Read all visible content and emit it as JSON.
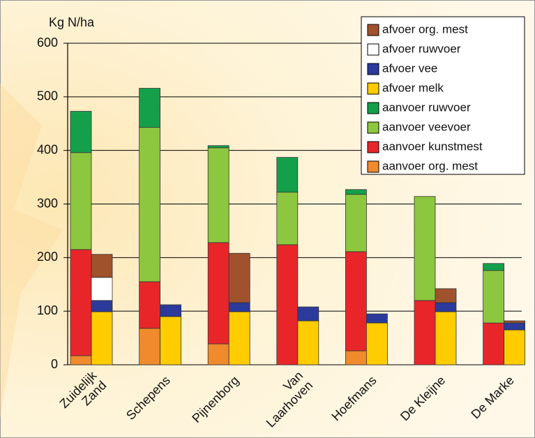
{
  "chart_data": {
    "type": "stacked_bar",
    "y_label": "Kg N/ha",
    "categories": [
      "Zuidelijk\nZand",
      "Schepens",
      "Pijnenborg",
      "Van\nLaarhoven",
      "Hoefmans",
      "De Kleijne",
      "De Marke"
    ],
    "ylim": [
      0,
      600
    ],
    "yticks": [
      0,
      100,
      200,
      300,
      400,
      500,
      600
    ],
    "grid": true,
    "legend": "upper right",
    "series": [
      {
        "name": "afvoer org. mest",
        "color": "#a0522d",
        "stack": 1,
        "values": [
          43,
          0,
          92,
          0,
          0,
          26,
          4
        ]
      },
      {
        "name": "afvoer ruwvoer",
        "color": "#ffffff",
        "stack": 1,
        "values": [
          43,
          0,
          0,
          0,
          0,
          0,
          0
        ]
      },
      {
        "name": "afvoer vee",
        "color": "#2b3a9b",
        "stack": 1,
        "values": [
          21,
          22,
          17,
          26,
          17,
          17,
          13
        ]
      },
      {
        "name": "afvoer melk",
        "color": "#ffcc00",
        "stack": 1,
        "values": [
          99,
          90,
          99,
          82,
          78,
          99,
          65
        ]
      },
      {
        "name": "aanvoer ruwvoer",
        "color": "#14a04b",
        "stack": 0,
        "values": [
          77,
          73,
          4,
          65,
          9,
          0,
          13
        ]
      },
      {
        "name": "aanvoer veevoer",
        "color": "#8dc63f",
        "stack": 0,
        "values": [
          181,
          288,
          177,
          98,
          107,
          194,
          98
        ]
      },
      {
        "name": "aanvoer kunstmest",
        "color": "#e8262a",
        "stack": 0,
        "values": [
          198,
          87,
          189,
          224,
          185,
          120,
          78
        ]
      },
      {
        "name": "aanvoer org. mest",
        "color": "#f08a2c",
        "stack": 0,
        "values": [
          17,
          68,
          39,
          0,
          26,
          0,
          0
        ]
      }
    ]
  }
}
